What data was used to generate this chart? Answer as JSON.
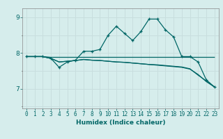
{
  "xlabel": "Humidex (Indice chaleur)",
  "background_color": "#d6edec",
  "grid_color": "#c8dede",
  "line_color": "#006666",
  "xlim": [
    -0.5,
    23.5
  ],
  "ylim": [
    6.45,
    9.25
  ],
  "yticks": [
    7,
    8,
    9
  ],
  "xticks": [
    0,
    1,
    2,
    3,
    4,
    5,
    6,
    7,
    8,
    9,
    10,
    11,
    12,
    13,
    14,
    15,
    16,
    17,
    18,
    19,
    20,
    21,
    22,
    23
  ],
  "series": [
    {
      "x": [
        0,
        1,
        2,
        3,
        4,
        5,
        6,
        7,
        8,
        9,
        10,
        11,
        12,
        13,
        14,
        15,
        16,
        17,
        18,
        19,
        20,
        21,
        22,
        23
      ],
      "y": [
        7.9,
        7.9,
        7.9,
        7.85,
        7.6,
        7.75,
        7.8,
        8.05,
        8.05,
        8.1,
        8.5,
        8.75,
        8.55,
        8.35,
        8.6,
        8.95,
        8.95,
        8.65,
        8.45,
        7.9,
        7.9,
        7.75,
        7.25,
        7.05
      ],
      "marker": "+"
    },
    {
      "x": [
        0,
        1,
        2,
        3,
        4,
        5,
        6,
        7,
        8,
        9,
        10,
        11,
        12,
        13,
        14,
        15,
        16,
        17,
        18,
        19,
        20,
        21,
        22,
        23
      ],
      "y": [
        7.9,
        7.9,
        7.9,
        7.88,
        7.88,
        7.88,
        7.88,
        7.88,
        7.88,
        7.88,
        7.88,
        7.88,
        7.88,
        7.88,
        7.88,
        7.88,
        7.88,
        7.88,
        7.88,
        7.88,
        7.88,
        7.88,
        7.88,
        7.88
      ],
      "marker": null
    },
    {
      "x": [
        0,
        1,
        2,
        3,
        4,
        5,
        6,
        7,
        8,
        9,
        10,
        11,
        12,
        13,
        14,
        15,
        16,
        17,
        18,
        19,
        20,
        21,
        22,
        23
      ],
      "y": [
        7.9,
        7.9,
        7.9,
        7.85,
        7.75,
        7.77,
        7.79,
        7.82,
        7.8,
        7.79,
        7.77,
        7.75,
        7.74,
        7.72,
        7.7,
        7.68,
        7.66,
        7.64,
        7.62,
        7.6,
        7.55,
        7.4,
        7.2,
        7.05
      ],
      "marker": null
    },
    {
      "x": [
        0,
        1,
        2,
        3,
        4,
        5,
        6,
        7,
        8,
        9,
        10,
        11,
        12,
        13,
        14,
        15,
        16,
        17,
        18,
        19,
        20,
        21,
        22,
        23
      ],
      "y": [
        7.9,
        7.9,
        7.9,
        7.85,
        7.75,
        7.77,
        7.79,
        7.82,
        7.8,
        7.79,
        7.77,
        7.75,
        7.74,
        7.72,
        7.7,
        7.68,
        7.67,
        7.65,
        7.63,
        7.61,
        7.56,
        7.38,
        7.22,
        7.05
      ],
      "marker": null
    }
  ]
}
